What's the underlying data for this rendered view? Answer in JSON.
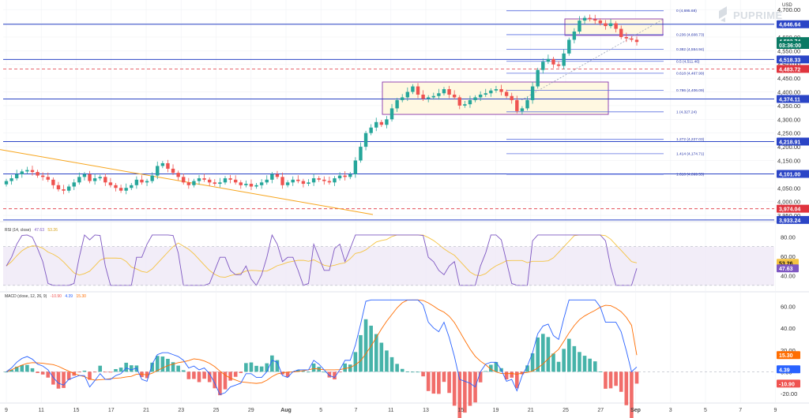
{
  "header": {
    "currency": "USD",
    "logo_text": "PUPRIME"
  },
  "colors": {
    "up": "#26a69a",
    "down": "#ef5350",
    "level_line": "#2b45c6",
    "fib_line": "#5a6fe0",
    "resistance_dashed": "#e0343e",
    "trendline": "#f7a51c",
    "rsi_line": "#7e57c2",
    "rsi_ma": "#f5c342",
    "macd_line": "#2962ff",
    "signal_line": "#ff6d00"
  },
  "main": {
    "price_ticks": [
      "4,700.00",
      "4,650.00",
      "4,600.00",
      "4,550.00",
      "4,500.00",
      "4,450.00",
      "4,400.00",
      "4,350.00",
      "4,300.00",
      "4,250.00",
      "4,200.00",
      "4,150.00",
      "4,100.00",
      "4,050.00",
      "4,000.00",
      "3,950.00"
    ],
    "level_tags": [
      {
        "label": "4,646.64",
        "style": "blue"
      },
      {
        "label": "4,582.74",
        "style": "green"
      },
      {
        "label": "03:36:00",
        "style": "green"
      },
      {
        "label": "4,518.33",
        "style": "blue"
      },
      {
        "label": "4,483.72",
        "style": "red"
      },
      {
        "label": "4,374.11",
        "style": "blue"
      },
      {
        "label": "4,218.91",
        "style": "blue"
      },
      {
        "label": "4,101.00",
        "style": "blue"
      },
      {
        "label": "3,974.04",
        "style": "red"
      },
      {
        "label": "3,933.24",
        "style": "blue"
      }
    ],
    "fib_labels": [
      "0 (4,695.68)",
      "0.236 (4,608.73)",
      "0.382 (4,554.94)",
      "0.5 (4,511.46)",
      "0.618 (4,467.99)",
      "0.786 (4,406.09)",
      "1 (4,327.24)",
      "1.272 (4,227.03)",
      "1.414 (4,174.71)",
      "1.618 (4,099.55)"
    ]
  },
  "rsi": {
    "title": "RSI (14, close)",
    "rsi_value": "47.63",
    "ma_value": "53.26",
    "ticks": [
      "80.00",
      "60.00",
      "40.00"
    ],
    "tags": [
      "53.26",
      "47.63"
    ]
  },
  "macd": {
    "title": "MACD (close, 12, 26, 9)",
    "hist_value": "-10.90",
    "macd_value": "4.39",
    "signal_value": "15.30",
    "ticks": [
      "60.00",
      "40.00",
      "20.00",
      "0.00",
      "-20.00"
    ],
    "tags": [
      "15.30",
      "4.39",
      "-10.90"
    ]
  },
  "x_axis": {
    "labels": [
      "9",
      "11",
      "15",
      "17",
      "21",
      "23",
      "25",
      "29",
      "Aug",
      "5",
      "7",
      "11",
      "13",
      "15",
      "19",
      "21",
      "25",
      "27",
      "Sep",
      "3",
      "5",
      "7",
      "9"
    ]
  },
  "chart_data": {
    "type": "candlestick",
    "title": "",
    "y_range": [
      3930,
      4712
    ],
    "close_sequence_approx": [
      4075,
      4085,
      4100,
      4110,
      4115,
      4108,
      4095,
      4090,
      4080,
      4060,
      4045,
      4040,
      4055,
      4070,
      4090,
      4100,
      4075,
      4085,
      4090,
      4070,
      4060,
      4050,
      4040,
      4050,
      4060,
      4080,
      4070,
      4075,
      4095,
      4130,
      4140,
      4120,
      4105,
      4090,
      4070,
      4060,
      4075,
      4085,
      4080,
      4070,
      4065,
      4070,
      4085,
      4080,
      4070,
      4060,
      4065,
      4055,
      4060,
      4070,
      4080,
      4100,
      4090,
      4060,
      4070,
      4080,
      4075,
      4065,
      4070,
      4085,
      4080,
      4075,
      4070,
      4085,
      4095,
      4090,
      4100,
      4150,
      4200,
      4250,
      4270,
      4290,
      4280,
      4300,
      4340,
      4370,
      4380,
      4400,
      4420,
      4390,
      4375,
      4380,
      4385,
      4395,
      4410,
      4390,
      4380,
      4350,
      4355,
      4370,
      4380,
      4390,
      4395,
      4405,
      4410,
      4400,
      4385,
      4370,
      4330,
      4340,
      4370,
      4420,
      4480,
      4510,
      4520,
      4500,
      4495,
      4540,
      4590,
      4620,
      4660,
      4670,
      4665,
      4660,
      4650,
      4640,
      4650,
      4630,
      4600,
      4595,
      4590,
      4582
    ],
    "levels": [
      4646.64,
      4582.74,
      4518.33,
      4483.72,
      4374.11,
      4218.91,
      4101.0,
      3974.04,
      3933.24
    ],
    "fibonacci": [
      {
        "ratio": "0",
        "value": 4695.68
      },
      {
        "ratio": "0.236",
        "value": 4608.73
      },
      {
        "ratio": "0.382",
        "value": 4554.94
      },
      {
        "ratio": "0.5",
        "value": 4511.46
      },
      {
        "ratio": "0.618",
        "value": 4467.99
      },
      {
        "ratio": "0.786",
        "value": 4406.09
      },
      {
        "ratio": "1",
        "value": 4327.24
      },
      {
        "ratio": "1.272",
        "value": 4227.03
      },
      {
        "ratio": "1.414",
        "value": 4174.71
      },
      {
        "ratio": "1.618",
        "value": 4099.55
      }
    ],
    "rsi": {
      "value": 47.63,
      "ma": 53.26,
      "range": [
        25,
        95
      ]
    },
    "macd": {
      "macd": 4.39,
      "signal": 15.3,
      "histogram": -10.9,
      "range": [
        -28,
        72
      ]
    }
  }
}
